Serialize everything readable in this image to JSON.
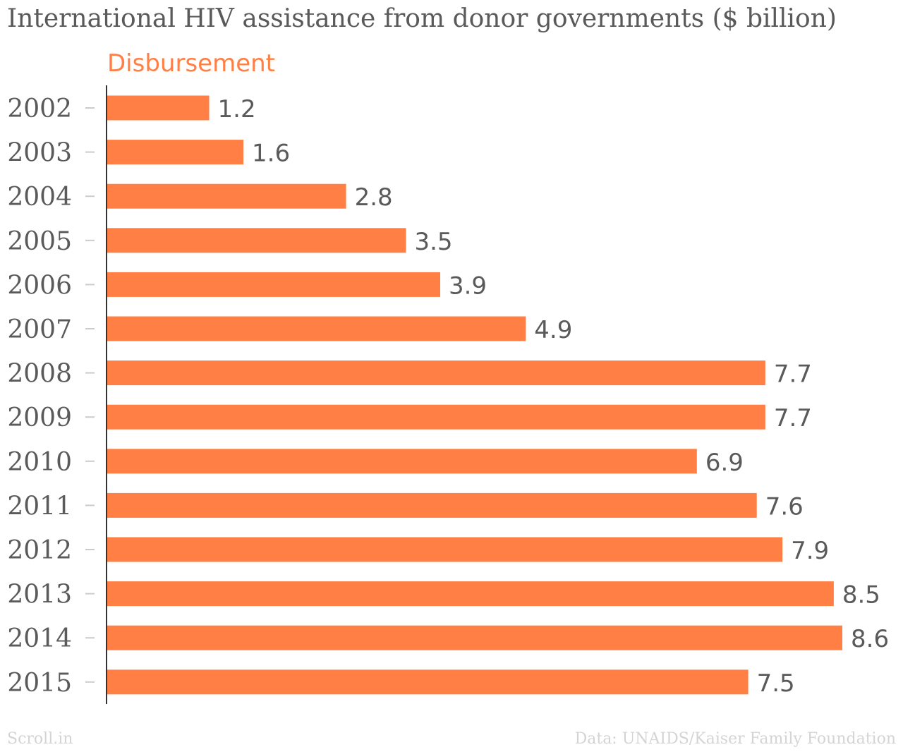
{
  "chart_data": {
    "type": "bar",
    "orientation": "horizontal",
    "title": "International HIV assistance from donor governments ($ billion)",
    "categories": [
      "2002",
      "2003",
      "2004",
      "2005",
      "2006",
      "2007",
      "2008",
      "2009",
      "2010",
      "2011",
      "2012",
      "2013",
      "2014",
      "2015"
    ],
    "series": [
      {
        "name": "Disbursement",
        "values": [
          1.2,
          1.6,
          2.8,
          3.5,
          3.9,
          4.9,
          7.7,
          7.7,
          6.9,
          7.6,
          7.9,
          8.5,
          8.6,
          7.5
        ],
        "labels": [
          "1.2",
          "1.6",
          "2.8",
          "3.5",
          "3.9",
          "4.9",
          "7.7",
          "7.7",
          "6.9",
          "7.6",
          "7.9",
          "8.5",
          "8.6",
          "7.5"
        ]
      }
    ],
    "xlim": [
      0,
      8.6
    ],
    "grid": false,
    "legend_position": "top",
    "colors": {
      "bar": "#ff7f45",
      "text": "#5a5a5a",
      "tick": "#cccccc",
      "axis": "#333333"
    }
  },
  "footer": {
    "left": "Scroll.in",
    "right": "Data: UNAIDS/Kaiser Family Foundation"
  }
}
